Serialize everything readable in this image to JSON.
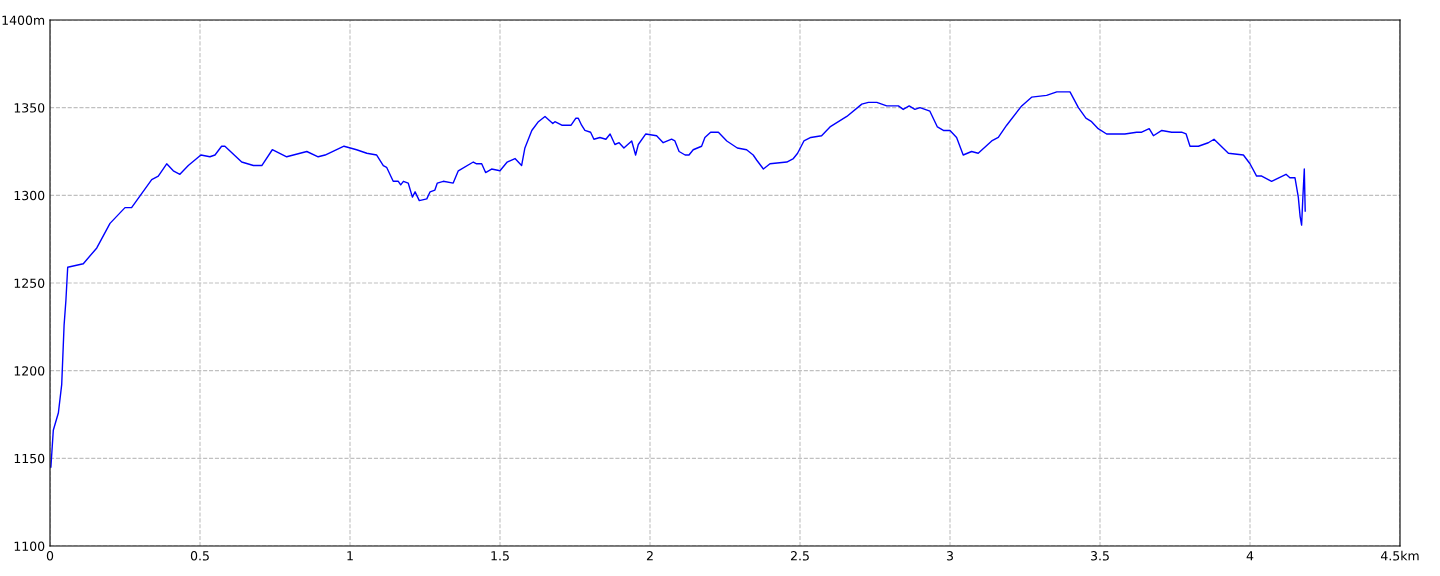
{
  "chart_data": {
    "type": "line",
    "x": [
      0.003,
      0.011,
      0.028,
      0.039,
      0.047,
      0.053,
      0.059,
      0.111,
      0.156,
      0.2,
      0.25,
      0.272,
      0.339,
      0.361,
      0.389,
      0.411,
      0.433,
      0.461,
      0.503,
      0.533,
      0.55,
      0.572,
      0.583,
      0.639,
      0.678,
      0.706,
      0.741,
      0.789,
      0.856,
      0.894,
      0.917,
      0.98,
      1.022,
      1.056,
      1.089,
      1.111,
      1.122,
      1.144,
      1.161,
      1.169,
      1.178,
      1.194,
      1.208,
      1.217,
      1.231,
      1.256,
      1.267,
      1.283,
      1.291,
      1.311,
      1.344,
      1.361,
      1.411,
      1.422,
      1.439,
      1.452,
      1.472,
      1.5,
      1.524,
      1.55,
      1.572,
      1.583,
      1.606,
      1.628,
      1.65,
      1.676,
      1.683,
      1.706,
      1.737,
      1.753,
      1.761,
      1.772,
      1.783,
      1.802,
      1.813,
      1.833,
      1.853,
      1.867,
      1.883,
      1.897,
      1.913,
      1.939,
      1.952,
      1.961,
      1.986,
      2.022,
      2.044,
      2.072,
      2.083,
      2.097,
      2.117,
      2.13,
      2.144,
      2.172,
      2.183,
      2.202,
      2.228,
      2.256,
      2.291,
      2.322,
      2.344,
      2.356,
      2.378,
      2.4,
      2.456,
      2.478,
      2.492,
      2.513,
      2.536,
      2.572,
      2.6,
      2.656,
      2.706,
      2.728,
      2.756,
      2.789,
      2.828,
      2.844,
      2.864,
      2.883,
      2.9,
      2.933,
      2.958,
      2.978,
      3.0,
      3.022,
      3.044,
      3.072,
      3.094,
      3.139,
      3.161,
      3.189,
      3.239,
      3.272,
      3.322,
      3.356,
      3.4,
      3.428,
      3.453,
      3.472,
      3.494,
      3.522,
      3.583,
      3.622,
      3.639,
      3.664,
      3.678,
      3.706,
      3.739,
      3.772,
      3.787,
      3.8,
      3.828,
      3.861,
      3.88,
      3.928,
      3.978,
      4.0,
      4.022,
      4.039,
      4.072,
      4.12,
      4.133,
      4.15,
      4.161,
      4.167,
      4.172,
      4.176,
      4.181,
      4.184
    ],
    "series": [
      {
        "color": "#0000ff",
        "values": [
          1145,
          1166,
          1176,
          1192,
          1226,
          1240,
          1259,
          1261,
          1270,
          1284,
          1293,
          1293,
          1309,
          1311,
          1318,
          1314,
          1312,
          1317,
          1323,
          1322,
          1323,
          1328,
          1328,
          1319,
          1317,
          1317,
          1326,
          1322,
          1325,
          1322,
          1323,
          1328,
          1326,
          1324,
          1323,
          1317,
          1316,
          1308,
          1308,
          1306,
          1308,
          1307,
          1299,
          1302,
          1297,
          1298,
          1302,
          1303,
          1307,
          1308,
          1307,
          1314,
          1319,
          1318,
          1318,
          1313,
          1315,
          1314,
          1319,
          1321,
          1317,
          1327,
          1337,
          1342,
          1345,
          1341,
          1342,
          1340,
          1340,
          1344,
          1344,
          1340,
          1337,
          1336,
          1332,
          1333,
          1332,
          1335,
          1329,
          1330,
          1327,
          1331,
          1323,
          1329,
          1335,
          1334,
          1330,
          1332,
          1331,
          1325,
          1323,
          1323,
          1326,
          1328,
          1333,
          1336,
          1336,
          1331,
          1327,
          1326,
          1323,
          1320,
          1315,
          1318,
          1319,
          1321,
          1324,
          1331,
          1333,
          1334,
          1339,
          1345,
          1352,
          1353,
          1353,
          1351,
          1351,
          1349,
          1351,
          1349,
          1350,
          1348,
          1339,
          1337,
          1337,
          1333,
          1323,
          1325,
          1324,
          1331,
          1333,
          1340,
          1351,
          1356,
          1357,
          1359,
          1359,
          1350,
          1344,
          1342,
          1338,
          1335,
          1335,
          1336,
          1336,
          1338,
          1334,
          1337,
          1336,
          1336,
          1335,
          1328,
          1328,
          1330,
          1332,
          1324,
          1323,
          1318,
          1311,
          1311,
          1308,
          1312,
          1310,
          1310,
          1299,
          1288,
          1283,
          1298,
          1315,
          1291
        ]
      }
    ],
    "xlim": [
      0,
      4.5
    ],
    "xticks": [
      0,
      0.5,
      1,
      1.5,
      2,
      2.5,
      3,
      3.5,
      4,
      {
        "value": 4.5,
        "label": "4.5km"
      }
    ],
    "ylim": [
      1100,
      1400
    ],
    "yticks": [
      1100,
      1150,
      1200,
      1250,
      1300,
      1350,
      {
        "value": 1400,
        "label": "1400m"
      }
    ],
    "grid": true,
    "marker": "none",
    "line_style": "solid"
  }
}
